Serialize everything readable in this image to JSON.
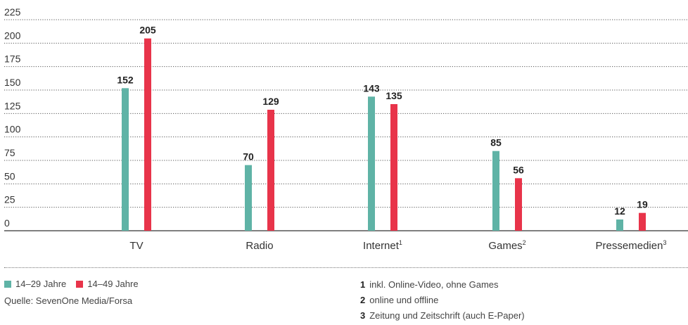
{
  "chart_data": {
    "type": "bar",
    "categories": [
      "TV",
      "Radio",
      "Internet",
      "Games",
      "Pressemedien"
    ],
    "category_footnotes": [
      "",
      "",
      "1",
      "2",
      "3"
    ],
    "series": [
      {
        "name": "14–29 Jahre",
        "color": "#5fb3a6",
        "values": [
          152,
          70,
          143,
          85,
          12
        ]
      },
      {
        "name": "14–49 Jahre",
        "color": "#e8344a",
        "values": [
          205,
          129,
          135,
          56,
          19
        ]
      }
    ],
    "yticks": [
      0,
      25,
      50,
      75,
      100,
      125,
      150,
      175,
      200,
      225
    ],
    "ylim": [
      0,
      225
    ],
    "grid": true,
    "legend_position": "bottom-left"
  },
  "source": "Quelle: SevenOne Media/Forsa",
  "footnotes": [
    {
      "num": "1",
      "text": "inkl. Online-Video, ohne Games"
    },
    {
      "num": "2",
      "text": "online und offline"
    },
    {
      "num": "3",
      "text": "Zeitung und Zeitschrift (auch E-Paper)"
    }
  ]
}
